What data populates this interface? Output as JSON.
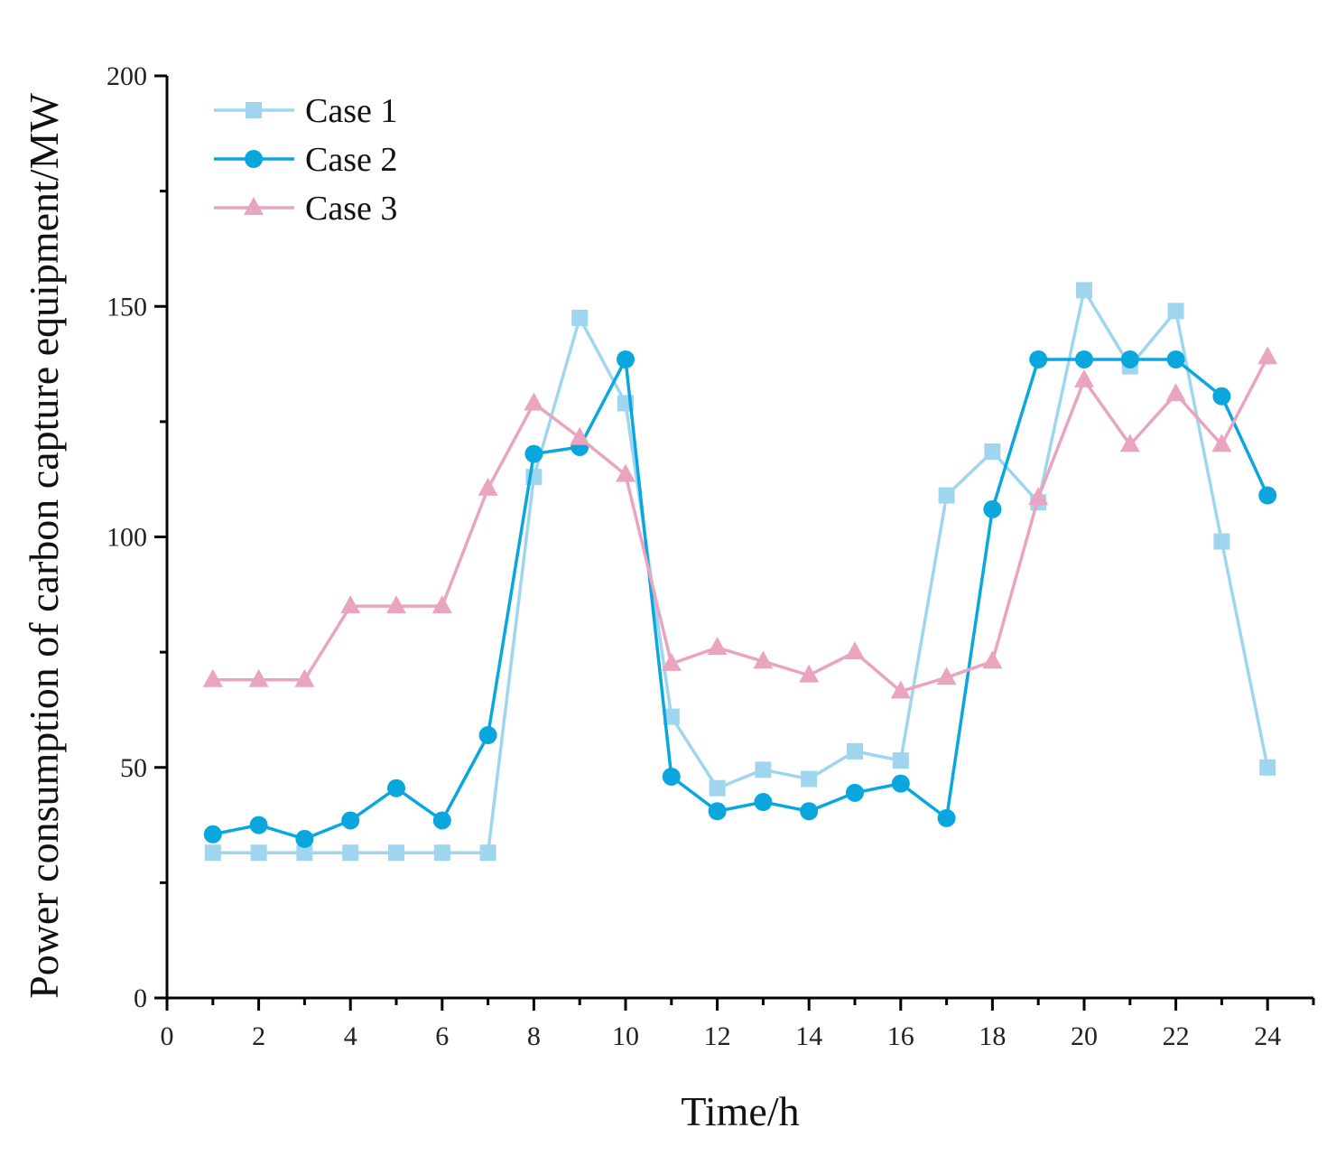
{
  "chart_data": {
    "type": "line",
    "title": "",
    "xlabel": "Time/h",
    "ylabel": "Power consumption of carbon capture equipment/MW",
    "xlim": [
      0,
      25
    ],
    "ylim": [
      0,
      200
    ],
    "x_ticks": [
      0,
      2,
      4,
      6,
      8,
      10,
      12,
      14,
      16,
      18,
      20,
      22,
      24
    ],
    "y_ticks": [
      0,
      50,
      100,
      150,
      200
    ],
    "grid": false,
    "legend_position": "top-left",
    "x": [
      1,
      2,
      3,
      4,
      5,
      6,
      7,
      8,
      9,
      10,
      11,
      12,
      13,
      14,
      15,
      16,
      17,
      18,
      19,
      20,
      21,
      22,
      23,
      24
    ],
    "series": [
      {
        "name": "Case 1",
        "marker": "square",
        "color": "#9fd5ee",
        "values": [
          31.5,
          31.5,
          31.5,
          31.5,
          31.5,
          31.5,
          31.5,
          113,
          147.5,
          129,
          61,
          45.5,
          49.5,
          47.5,
          53.5,
          51.5,
          109,
          118.5,
          107.5,
          153.5,
          137,
          149,
          99,
          50
        ]
      },
      {
        "name": "Case 2",
        "marker": "circle",
        "color": "#0aa7df",
        "values": [
          35.5,
          37.5,
          34.5,
          38.5,
          45.5,
          38.5,
          57,
          118,
          119.5,
          138.5,
          48,
          40.5,
          42.5,
          40.5,
          44.5,
          46.5,
          39,
          106,
          138.5,
          138.5,
          138.5,
          138.5,
          130.5,
          109
        ]
      },
      {
        "name": "Case 3",
        "marker": "triangle",
        "color": "#e9a4bf",
        "values": [
          69,
          69,
          69,
          85,
          85,
          85,
          110.5,
          129,
          121.5,
          113.5,
          72.5,
          76,
          73,
          70,
          75,
          66.5,
          69.5,
          73,
          108.5,
          134,
          120,
          131,
          120,
          139
        ]
      }
    ]
  }
}
